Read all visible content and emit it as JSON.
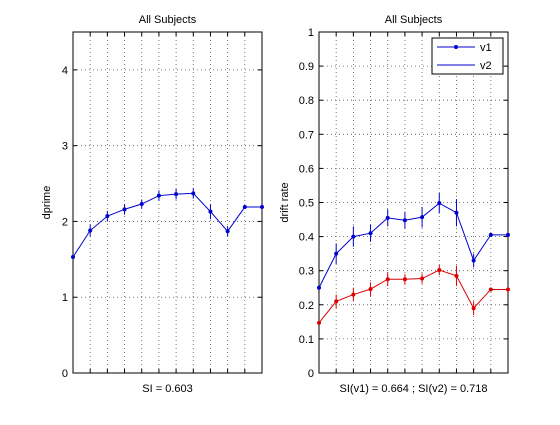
{
  "chart_data": [
    {
      "type": "line",
      "title": "All Subjects",
      "xlabel": "SI = 0.603",
      "ylabel": "dprime",
      "xlim": [
        0,
        11
      ],
      "ylim": [
        0,
        4.5
      ],
      "yticks": [
        0,
        1,
        2,
        3,
        4
      ],
      "xticks": [
        1,
        2,
        3,
        4,
        5,
        6,
        7,
        8,
        9,
        10
      ],
      "grid": true,
      "x": [
        0,
        1,
        2,
        3,
        4,
        5,
        6,
        7,
        8,
        9,
        10,
        11
      ],
      "series": [
        {
          "name": "",
          "color": "#0000cc",
          "marker": "dot",
          "values": [
            1.53,
            1.88,
            2.07,
            2.16,
            2.23,
            2.34,
            2.36,
            2.37,
            2.13,
            1.87,
            2.19,
            2.19
          ],
          "errors": [
            0,
            0.08,
            0.07,
            0.07,
            0.06,
            0.07,
            0.07,
            0.07,
            0.1,
            0.07,
            0,
            0
          ]
        }
      ]
    },
    {
      "type": "line",
      "title": "All Subjects",
      "xlabel": "SI(v1) = 0.664 ; SI(v2) = 0.718",
      "ylabel": "drift rate",
      "xlim": [
        0,
        11
      ],
      "ylim": [
        0,
        1
      ],
      "yticks": [
        0,
        0.1,
        0.2,
        0.3,
        0.4,
        0.5,
        0.6,
        0.7,
        0.8,
        0.9,
        1
      ],
      "xticks": [
        1,
        2,
        3,
        4,
        5,
        6,
        7,
        8,
        9,
        10
      ],
      "grid": true,
      "legend": "top-right",
      "x": [
        0,
        1,
        2,
        3,
        4,
        5,
        6,
        7,
        8,
        9,
        10,
        11
      ],
      "series": [
        {
          "name": "v1",
          "color": "#0000cc",
          "marker": "dot",
          "values": [
            0.25,
            0.35,
            0.4,
            0.41,
            0.455,
            0.448,
            0.457,
            0.498,
            0.47,
            0.33,
            0.405,
            0.405
          ],
          "errors": [
            0,
            0.03,
            0.03,
            0.025,
            0.025,
            0.025,
            0.03,
            0.03,
            0.04,
            0.02,
            0,
            0
          ]
        },
        {
          "name": "v2",
          "color": "#dd0000",
          "marker": "dot",
          "values": [
            0.147,
            0.21,
            0.23,
            0.246,
            0.275,
            0.275,
            0.277,
            0.302,
            0.285,
            0.19,
            0.245,
            0.245
          ],
          "errors": [
            0,
            0.02,
            0.02,
            0.02,
            0.02,
            0.015,
            0.015,
            0.015,
            0.03,
            0.02,
            0,
            0
          ]
        }
      ]
    }
  ]
}
